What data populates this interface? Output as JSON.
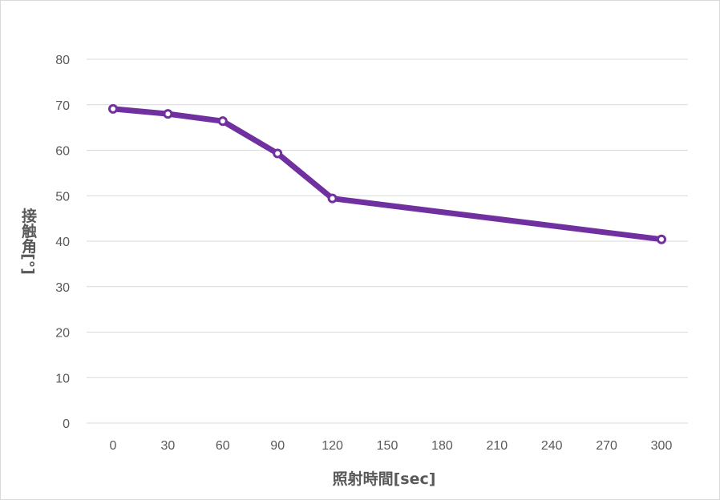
{
  "chart_data": {
    "type": "line",
    "title": "",
    "xlabel": "照射時間[sec]",
    "ylabel": "接触角[°]",
    "x_ticks": [
      0,
      30,
      60,
      90,
      120,
      150,
      180,
      210,
      240,
      270,
      300
    ],
    "y_ticks": [
      0,
      10,
      20,
      30,
      40,
      50,
      60,
      70,
      80
    ],
    "xlim": [
      0,
      300
    ],
    "ylim": [
      0,
      80
    ],
    "grid": true,
    "legend": "none",
    "series": [
      {
        "color": "#7030a0",
        "x": [
          0,
          30,
          60,
          90,
          120,
          300
        ],
        "values": [
          69.1,
          68.0,
          66.4,
          59.3,
          49.4,
          40.4
        ]
      }
    ]
  }
}
